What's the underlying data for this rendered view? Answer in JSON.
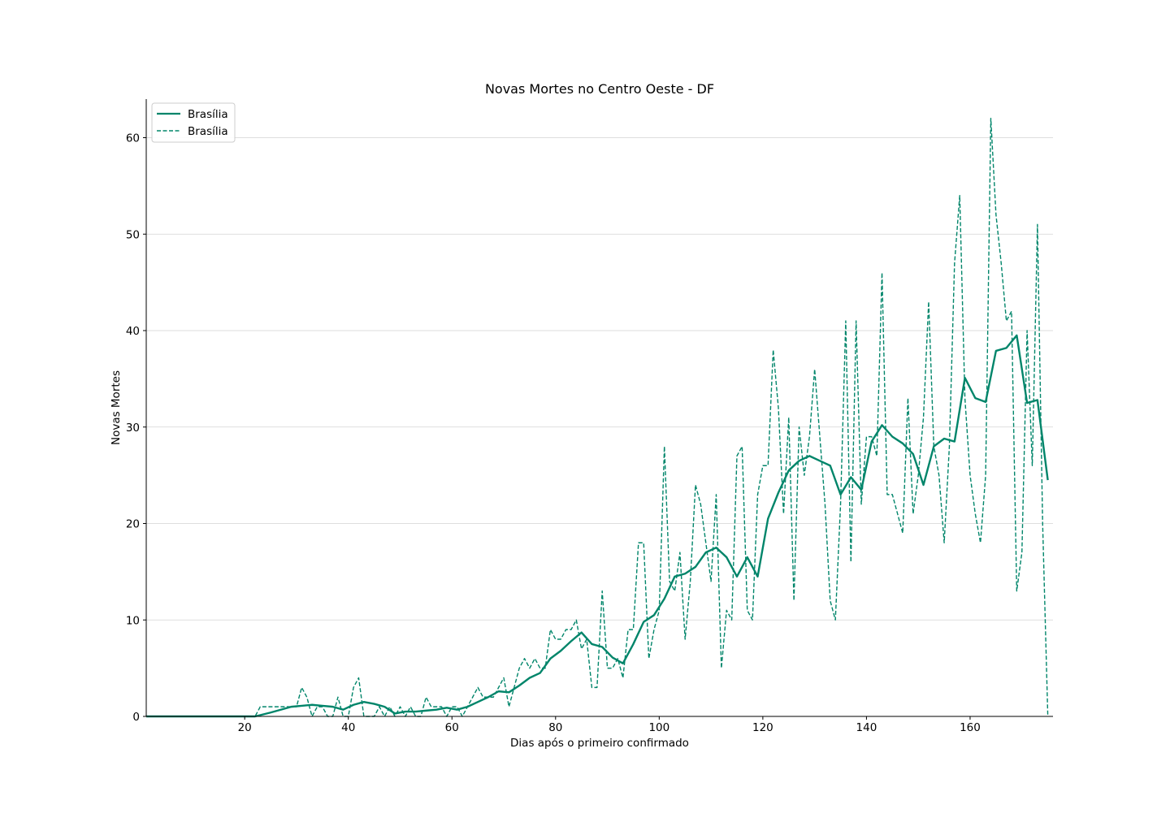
{
  "chart_data": {
    "type": "line",
    "title": "Novas Mortes no Centro Oeste - DF",
    "xlabel": "Dias após o primeiro confirmado",
    "ylabel": "Novas Mortes",
    "xlim": [
      1,
      176
    ],
    "ylim": [
      0,
      64
    ],
    "xticks": [
      20,
      40,
      60,
      80,
      100,
      120,
      140,
      160
    ],
    "yticks": [
      0,
      10,
      20,
      30,
      40,
      50,
      60
    ],
    "grid": "horizontal",
    "legend_position": "top-left",
    "colors": {
      "series": "#00856a",
      "grid": "#d3d3d3"
    },
    "series": [
      {
        "name": "Brasília",
        "style": "solid",
        "x": [
          1,
          7,
          22,
          25,
          29,
          31,
          33,
          35,
          37,
          39,
          41,
          43,
          45,
          47,
          49,
          51,
          53,
          55,
          57,
          59,
          61,
          63,
          65,
          67,
          69,
          71,
          73,
          75,
          77,
          79,
          81,
          83,
          85,
          87,
          89,
          91,
          93,
          95,
          97,
          99,
          101,
          103,
          105,
          107,
          109,
          111,
          113,
          115,
          117,
          119,
          121,
          123,
          125,
          127,
          129,
          131,
          133,
          135,
          137,
          139,
          141,
          143,
          145,
          147,
          149,
          151,
          153,
          155,
          157,
          159,
          161,
          163,
          165,
          167,
          169,
          171,
          173,
          175
        ],
        "values": [
          0,
          0,
          0,
          0.4,
          1,
          1.1,
          1.2,
          1.1,
          1.0,
          0.7,
          1.2,
          1.5,
          1.3,
          1.0,
          0.3,
          0.5,
          0.5,
          0.6,
          0.7,
          0.9,
          0.7,
          1.0,
          1.5,
          2.0,
          2.6,
          2.5,
          3.2,
          4.0,
          4.5,
          6.0,
          6.8,
          7.8,
          8.7,
          7.5,
          7.2,
          6.1,
          5.5,
          7.5,
          9.8,
          10.5,
          12.2,
          14.5,
          14.8,
          15.5,
          17.0,
          17.5,
          16.5,
          14.5,
          16.5,
          14.5,
          20.5,
          23.2,
          25.5,
          26.5,
          27.0,
          26.5,
          26.0,
          23.0,
          24.8,
          23.5,
          28.5,
          30.2,
          29.0,
          28.3,
          27.2,
          24.0,
          28.0,
          28.8,
          28.5,
          35.1,
          33.0,
          32.6,
          37.9,
          38.2,
          39.5,
          32.5,
          32.8,
          24.5
        ]
      },
      {
        "name": "Brasília",
        "style": "dashed",
        "x": [
          1,
          22,
          23,
          28,
          30,
          31,
          32,
          33,
          34,
          35,
          36,
          37,
          38,
          39,
          40,
          41,
          42,
          43,
          44,
          45,
          46,
          47,
          48,
          49,
          50,
          51,
          52,
          53,
          54,
          55,
          56,
          57,
          58,
          59,
          60,
          61,
          62,
          63,
          64,
          65,
          66,
          67,
          68,
          69,
          70,
          71,
          72,
          73,
          74,
          75,
          76,
          77,
          78,
          79,
          80,
          81,
          82,
          83,
          84,
          85,
          86,
          87,
          88,
          89,
          90,
          91,
          92,
          93,
          94,
          95,
          96,
          97,
          98,
          99,
          100,
          101,
          102,
          103,
          104,
          105,
          106,
          107,
          108,
          109,
          110,
          111,
          112,
          113,
          114,
          115,
          116,
          117,
          118,
          119,
          120,
          121,
          122,
          123,
          124,
          125,
          126,
          127,
          128,
          129,
          130,
          131,
          132,
          133,
          134,
          135,
          136,
          137,
          138,
          139,
          140,
          141,
          142,
          143,
          144,
          145,
          146,
          147,
          148,
          149,
          150,
          151,
          152,
          153,
          154,
          155,
          156,
          157,
          158,
          159,
          160,
          161,
          162,
          163,
          164,
          165,
          166,
          167,
          168,
          169,
          170,
          171,
          172,
          173,
          174,
          175
        ],
        "values": [
          0,
          0,
          1,
          1,
          1,
          3,
          2,
          0,
          1,
          1,
          0,
          0,
          2,
          0,
          0,
          3,
          4,
          0,
          0,
          0,
          1,
          0,
          1,
          0,
          1,
          0,
          1,
          0,
          0,
          2,
          1,
          1,
          1,
          0,
          1,
          1,
          0,
          1,
          2,
          3,
          2,
          2,
          2,
          3,
          4,
          1,
          3,
          5,
          6,
          5,
          6,
          5,
          5,
          9,
          8,
          8,
          9,
          9,
          10,
          7,
          8,
          3,
          3,
          13,
          5,
          5,
          6,
          4,
          9,
          9,
          18,
          18,
          6,
          9,
          11,
          28,
          14,
          13,
          17,
          8,
          14,
          24,
          22,
          18,
          14,
          23,
          5,
          11,
          10,
          27,
          28,
          11,
          10,
          23,
          26,
          26,
          38,
          32,
          21,
          31,
          12,
          30,
          25,
          29,
          36,
          29,
          22,
          12,
          10,
          22,
          41,
          16,
          41,
          22,
          29,
          29,
          27,
          46,
          23,
          23,
          21,
          19,
          33,
          21,
          25,
          31,
          43,
          28,
          25,
          18,
          28,
          47,
          54,
          33,
          25,
          21,
          18,
          25,
          62,
          52,
          47,
          41,
          42,
          13,
          17,
          40,
          26,
          51,
          20,
          0
        ]
      }
    ]
  }
}
